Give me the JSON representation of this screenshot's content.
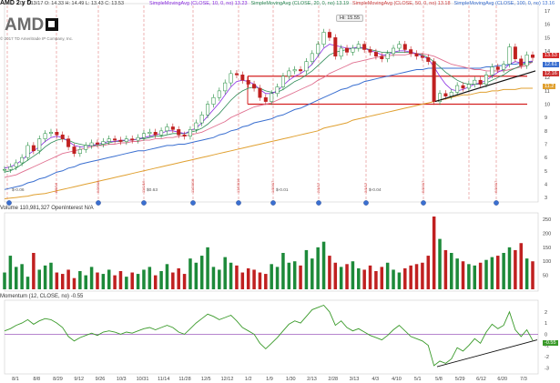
{
  "header": {
    "ticker": "AMD 2 y D",
    "ohlc": "D: 7/13/17   O: 14.33   H: 14.49   L: 13.43   C: 13.53",
    "sma_labels": [
      {
        "text": "SimpleMovingAvg (CLOSE, 10, 0, no)  13.23",
        "color": "#8a2be2"
      },
      {
        "text": "SimpleMovingAvg (CLOSE, 20, 0, no)  13.19",
        "color": "#2e8b57"
      },
      {
        "text": "SimpleMovingAvg (CLOSE, 50, 0, no)  13.18",
        "color": "#d04040"
      },
      {
        "text": "SimpleMovingAvg (CLOSE, 100, 0, no)  13.16",
        "color": "#3a6fd0"
      }
    ]
  },
  "logo": {
    "text": "AMD"
  },
  "copyright": "© 2017 TD Ameritrade IP Company, Inc.",
  "hi_label": "Hi: 15.55",
  "price_badges": [
    {
      "value": "13.53",
      "color": "#d42a2a"
    },
    {
      "value": "12.61",
      "color": "#3a6fd0"
    },
    {
      "value": "12.16",
      "color": "#cc3333"
    },
    {
      "value": "11.2",
      "color": "#e0a030"
    }
  ],
  "volume_label": "Volume  110,981,327   OpenInterest   N/A",
  "momentum_label": "Momentum (12, CLOSE, no)  -0.55",
  "momentum_badge": "-0.55",
  "chart_data": {
    "type": "line",
    "title": "AMD daily price with moving averages, volume and momentum",
    "price_axis": {
      "ticks": [
        3,
        4,
        5,
        6,
        7,
        8,
        9,
        10,
        11,
        12,
        13,
        14,
        15,
        16,
        17
      ],
      "range": [
        2.8,
        17
      ]
    },
    "volume_axis": {
      "ticks": [
        50,
        100,
        150,
        200,
        250
      ],
      "range": [
        0,
        260
      ]
    },
    "momentum_axis": {
      "ticks": [
        -3,
        -2,
        -1,
        0,
        1,
        2
      ],
      "range": [
        -3.3,
        2.8
      ]
    },
    "x_labels": [
      "8/1",
      "8/8",
      "8/29",
      "9/12",
      "9/26",
      "10/3",
      "10/31",
      "11/14",
      "11/28",
      "12/5",
      "12/12",
      "1/2",
      "1/9",
      "1/30",
      "2/13",
      "2/28",
      "3/13",
      "4/3",
      "4/10",
      "5/1",
      "5/8",
      "5/29",
      "6/12",
      "6/20",
      "7/3"
    ],
    "price_close": [
      5.1,
      5.3,
      5.6,
      6.0,
      6.9,
      6.5,
      7.4,
      7.8,
      7.9,
      7.7,
      7.4,
      6.8,
      6.3,
      6.6,
      6.9,
      7.1,
      7.0,
      7.2,
      7.4,
      7.3,
      7.2,
      7.4,
      7.3,
      7.5,
      7.8,
      7.9,
      7.7,
      8.0,
      8.3,
      8.1,
      7.7,
      7.6,
      8.1,
      8.6,
      9.2,
      10.0,
      10.5,
      11.0,
      11.6,
      12.3,
      12.2,
      11.8,
      11.5,
      11.2,
      10.5,
      10.2,
      10.8,
      11.3,
      12.1,
      12.5,
      12.6,
      12.5,
      13.2,
      13.8,
      14.5,
      15.4,
      15.0,
      13.6,
      14.2,
      13.9,
      14.2,
      14.5,
      14.1,
      13.9,
      13.6,
      13.4,
      13.8,
      14.2,
      14.5,
      14.1,
      13.8,
      13.6,
      13.5,
      13.2,
      10.2,
      10.8,
      10.6,
      10.9,
      11.4,
      11.2,
      11.5,
      11.8,
      11.5,
      12.2,
      12.8,
      12.6,
      13.0,
      14.3,
      13.4,
      12.9,
      13.7,
      13.5
    ],
    "sma10": [
      5.2,
      5.3,
      5.5,
      5.8,
      6.2,
      6.5,
      6.8,
      7.2,
      7.5,
      7.6,
      7.5,
      7.2,
      6.9,
      6.8,
      6.8,
      6.9,
      7.0,
      7.1,
      7.2,
      7.2,
      7.3,
      7.3,
      7.3,
      7.4,
      7.5,
      7.6,
      7.7,
      7.8,
      8.0,
      8.0,
      7.9,
      7.8,
      8.0,
      8.2,
      8.6,
      9.1,
      9.6,
      10.1,
      10.7,
      11.3,
      11.7,
      11.8,
      11.7,
      11.5,
      11.1,
      10.8,
      10.8,
      11.0,
      11.4,
      11.8,
      12.1,
      12.3,
      12.6,
      13.0,
      13.6,
      14.2,
      14.5,
      14.4,
      14.3,
      14.2,
      14.2,
      14.3,
      14.2,
      14.0,
      13.9,
      13.7,
      13.7,
      13.9,
      14.0,
      14.0,
      13.9,
      13.8,
      13.6,
      13.4,
      12.8,
      12.1,
      11.5,
      11.1,
      11.0,
      11.1,
      11.3,
      11.5,
      11.6,
      11.8,
      12.1,
      12.4,
      12.6,
      13.0,
      13.2,
      13.1,
      13.2,
      13.23
    ],
    "sma20": [
      4.9,
      5.0,
      5.2,
      5.5,
      5.8,
      6.1,
      6.4,
      6.8,
      7.1,
      7.3,
      7.4,
      7.3,
      7.1,
      7.0,
      6.9,
      6.9,
      6.9,
      7.0,
      7.1,
      7.2,
      7.2,
      7.3,
      7.3,
      7.4,
      7.4,
      7.5,
      7.6,
      7.6,
      7.7,
      7.8,
      7.8,
      7.8,
      7.9,
      8.0,
      8.2,
      8.5,
      8.9,
      9.3,
      9.8,
      10.3,
      10.7,
      11.0,
      11.2,
      11.3,
      11.2,
      11.0,
      10.9,
      10.9,
      11.1,
      11.4,
      11.7,
      11.9,
      12.2,
      12.5,
      12.9,
      13.3,
      13.7,
      13.9,
      14.0,
      14.1,
      14.2,
      14.2,
      14.2,
      14.1,
      14.0,
      13.9,
      13.9,
      13.9,
      13.9,
      13.9,
      13.9,
      13.8,
      13.7,
      13.5,
      13.2,
      12.8,
      12.4,
      12.1,
      11.8,
      11.6,
      11.5,
      11.5,
      11.5,
      11.6,
      11.8,
      12.0,
      12.2,
      12.5,
      12.7,
      12.9,
      13.1,
      13.19
    ],
    "sma50": [
      4.5,
      4.6,
      4.7,
      4.9,
      5.1,
      5.3,
      5.5,
      5.7,
      5.9,
      6.1,
      6.3,
      6.4,
      6.5,
      6.6,
      6.7,
      6.8,
      6.9,
      6.9,
      7.0,
      7.0,
      7.1,
      7.1,
      7.2,
      7.2,
      7.3,
      7.3,
      7.4,
      7.4,
      7.5,
      7.5,
      7.6,
      7.6,
      7.7,
      7.8,
      7.9,
      8.1,
      8.3,
      8.5,
      8.7,
      9.0,
      9.2,
      9.4,
      9.6,
      9.8,
      9.9,
      10.0,
      10.1,
      10.3,
      10.5,
      10.7,
      10.9,
      11.1,
      11.3,
      11.5,
      11.8,
      12.0,
      12.3,
      12.5,
      12.7,
      12.9,
      13.1,
      13.2,
      13.3,
      13.4,
      13.5,
      13.6,
      13.6,
      13.7,
      13.7,
      13.7,
      13.8,
      13.8,
      13.8,
      13.7,
      13.6,
      13.4,
      13.2,
      13.0,
      12.9,
      12.8,
      12.7,
      12.6,
      12.6,
      12.5,
      12.5,
      12.5,
      12.5,
      12.6,
      12.7,
      12.8,
      12.9,
      13.18
    ],
    "sma100": [
      3.6,
      3.7,
      3.8,
      3.9,
      4.1,
      4.2,
      4.4,
      4.5,
      4.7,
      4.9,
      5.0,
      5.2,
      5.3,
      5.5,
      5.6,
      5.7,
      5.8,
      5.9,
      6.0,
      6.1,
      6.2,
      6.3,
      6.4,
      6.5,
      6.5,
      6.6,
      6.7,
      6.8,
      6.9,
      6.9,
      7.0,
      7.0,
      7.1,
      7.2,
      7.3,
      7.4,
      7.5,
      7.7,
      7.8,
      8.0,
      8.1,
      8.3,
      8.4,
      8.6,
      8.7,
      8.8,
      8.9,
      9.1,
      9.2,
      9.4,
      9.6,
      9.7,
      9.9,
      10.1,
      10.3,
      10.5,
      10.7,
      10.9,
      11.1,
      11.2,
      11.4,
      11.5,
      11.7,
      11.8,
      11.9,
      12.0,
      12.1,
      12.2,
      12.3,
      12.4,
      12.5,
      12.6,
      12.6,
      12.7,
      12.7,
      12.7,
      12.7,
      12.7,
      12.7,
      12.7,
      12.7,
      12.7,
      12.7,
      12.8,
      12.8,
      12.9,
      12.9,
      13.0,
      13.0,
      13.1,
      13.1,
      13.16
    ],
    "sma200": [
      2.9,
      2.95,
      3.0,
      3.05,
      3.1,
      3.2,
      3.25,
      3.3,
      3.4,
      3.5,
      3.6,
      3.7,
      3.8,
      3.9,
      4.0,
      4.1,
      4.2,
      4.3,
      4.4,
      4.5,
      4.6,
      4.7,
      4.8,
      4.9,
      5.0,
      5.1,
      5.2,
      5.3,
      5.4,
      5.5,
      5.6,
      5.7,
      5.8,
      5.9,
      6.0,
      6.1,
      6.2,
      6.3,
      6.4,
      6.5,
      6.6,
      6.7,
      6.8,
      6.9,
      7.0,
      7.1,
      7.2,
      7.3,
      7.4,
      7.5,
      7.6,
      7.7,
      7.8,
      7.9,
      8.0,
      8.2,
      8.3,
      8.4,
      8.5,
      8.6,
      8.8,
      8.9,
      9.0,
      9.1,
      9.2,
      9.3,
      9.4,
      9.5,
      9.6,
      9.7,
      9.8,
      9.9,
      10.0,
      10.1,
      10.2,
      10.3,
      10.4,
      10.5,
      10.6,
      10.7,
      10.7,
      10.8,
      10.9,
      10.9,
      11.0,
      11.0,
      11.1,
      11.1,
      11.1,
      11.2,
      11.2,
      11.2
    ],
    "resistance_levels": [
      12.1,
      10.0
    ],
    "volume": [
      60,
      120,
      80,
      90,
      45,
      130,
      70,
      85,
      95,
      60,
      55,
      70,
      40,
      65,
      50,
      80,
      60,
      55,
      70,
      50,
      65,
      45,
      60,
      55,
      70,
      80,
      50,
      65,
      90,
      60,
      75,
      55,
      110,
      95,
      120,
      150,
      80,
      70,
      115,
      95,
      85,
      60,
      75,
      70,
      60,
      55,
      90,
      80,
      130,
      95,
      100,
      85,
      140,
      110,
      150,
      170,
      120,
      95,
      80,
      90,
      100,
      75,
      70,
      85,
      65,
      80,
      95,
      70,
      60,
      75,
      85,
      90,
      95,
      120,
      260,
      180,
      140,
      130,
      110,
      100,
      90,
      85,
      95,
      105,
      115,
      120,
      130,
      150,
      140,
      165,
      110,
      100
    ],
    "momentum": [
      0.3,
      0.5,
      0.8,
      1.0,
      1.3,
      0.9,
      1.2,
      1.4,
      1.3,
      1.0,
      0.6,
      -0.2,
      -0.6,
      -0.3,
      -0.1,
      0.1,
      -0.1,
      0.2,
      0.3,
      0.2,
      0.0,
      0.2,
      0.1,
      0.3,
      0.5,
      0.6,
      0.4,
      0.6,
      0.8,
      0.6,
      0.2,
      0.0,
      0.5,
      1.0,
      1.4,
      1.8,
      1.6,
      1.3,
      1.5,
      1.7,
      1.2,
      0.6,
      0.3,
      0.0,
      -0.8,
      -1.3,
      -0.8,
      -0.3,
      0.3,
      0.9,
      1.2,
      1.0,
      1.6,
      2.2,
      2.4,
      2.6,
      2.0,
      0.8,
      1.2,
      0.6,
      0.3,
      0.5,
      0.2,
      -0.1,
      -0.3,
      -0.5,
      -0.1,
      0.4,
      0.8,
      0.3,
      -0.2,
      -0.4,
      -0.6,
      -1.0,
      -2.8,
      -2.4,
      -2.6,
      -2.2,
      -1.2,
      -1.5,
      -1.0,
      -0.4,
      -0.8,
      0.2,
      0.9,
      0.5,
      0.8,
      2.0,
      0.4,
      -0.2,
      0.4,
      -0.55
    ],
    "earnings_markers": [
      "8/1",
      "8/29",
      "10/3",
      "11/14",
      "1/2",
      "1/30",
      "2/28",
      "4/10",
      "5/8",
      "6/20"
    ],
    "dividend_labels": [
      {
        "at": "8/1",
        "text": "$-0.06"
      },
      {
        "at": "10/3",
        "text": "$0.63"
      },
      {
        "at": "1/30",
        "text": "$-0.01"
      },
      {
        "at": "4/10",
        "text": "$-0.04"
      }
    ]
  }
}
